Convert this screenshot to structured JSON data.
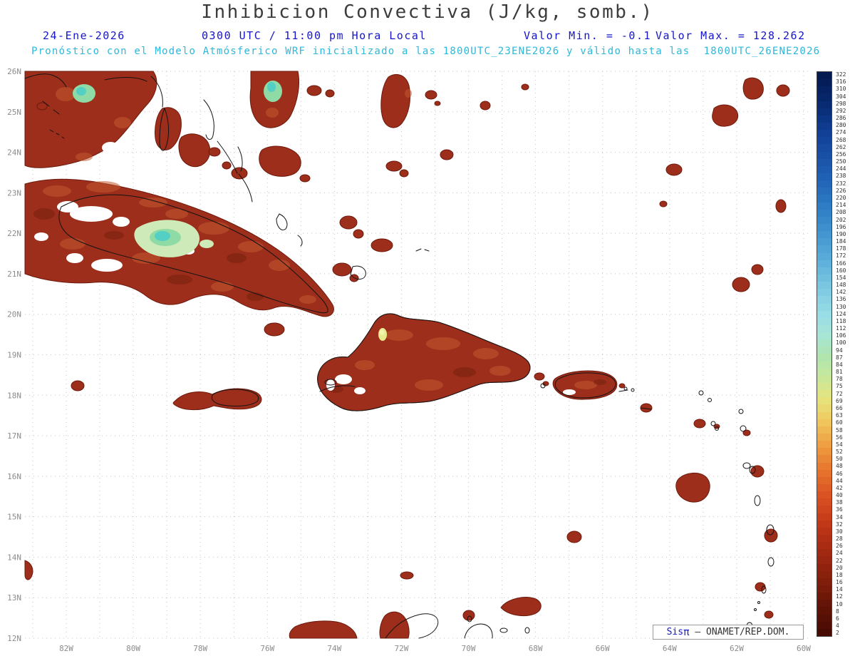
{
  "title": "Inhibicion Convectiva (J/kg, somb.)",
  "header": {
    "date": "24-Ene-2026",
    "time": "0300 UTC / 11:00 pm Hora Local",
    "valor_min": "Valor Min. = -0.1",
    "valor_max": "Valor Max. = 128.262",
    "subtitle": "Pronóstico con el Modelo Atmósferico WRF inicializado a las 1800UTC_23ENE2026 y válido hasta las  1800UTC_26ENE2026"
  },
  "map": {
    "lat_labels": [
      "26N",
      "25N",
      "24N",
      "23N",
      "22N",
      "21N",
      "20N",
      "19N",
      "18N",
      "17N",
      "16N",
      "15N",
      "14N",
      "13N",
      "12N"
    ],
    "lon_labels": [
      "82W",
      "80W",
      "78W",
      "76W",
      "74W",
      "72W",
      "70W",
      "68W",
      "66W",
      "64W",
      "62W",
      "60W"
    ]
  },
  "colorbar": {
    "values": [
      322,
      316,
      310,
      304,
      298,
      292,
      286,
      280,
      274,
      268,
      262,
      256,
      250,
      244,
      238,
      232,
      226,
      220,
      214,
      208,
      202,
      196,
      190,
      184,
      178,
      172,
      166,
      160,
      154,
      148,
      142,
      136,
      130,
      124,
      118,
      112,
      106,
      100,
      94,
      87,
      84,
      81,
      78,
      75,
      72,
      69,
      66,
      63,
      60,
      58,
      56,
      54,
      52,
      50,
      48,
      46,
      44,
      42,
      40,
      38,
      36,
      34,
      32,
      30,
      28,
      26,
      24,
      22,
      20,
      18,
      16,
      14,
      12,
      10,
      8,
      6,
      4,
      2
    ],
    "gradient_stops": [
      [
        0.0,
        "#041a50"
      ],
      [
        0.05,
        "#082a72"
      ],
      [
        0.11,
        "#12429a"
      ],
      [
        0.18,
        "#1f60b4"
      ],
      [
        0.25,
        "#3284c8"
      ],
      [
        0.32,
        "#55a8d8"
      ],
      [
        0.38,
        "#7cc8e2"
      ],
      [
        0.43,
        "#9adee6"
      ],
      [
        0.47,
        "#a8e6d4"
      ],
      [
        0.5,
        "#aee4b2"
      ],
      [
        0.54,
        "#c6e89c"
      ],
      [
        0.58,
        "#e6e47e"
      ],
      [
        0.62,
        "#f0c85e"
      ],
      [
        0.66,
        "#efa243"
      ],
      [
        0.7,
        "#e87c30"
      ],
      [
        0.75,
        "#dc5523"
      ],
      [
        0.8,
        "#c43a1a"
      ],
      [
        0.85,
        "#a52a12"
      ],
      [
        0.9,
        "#87200c"
      ],
      [
        0.95,
        "#651407"
      ],
      [
        1.0,
        "#470b04"
      ]
    ]
  },
  "attribution": {
    "sis": "Sis",
    "pi": "π",
    "rest": " – ONAMET/REP.DOM."
  },
  "colors": {
    "title_color": "#3c3c3c",
    "header_blue": "#1616c8",
    "subtitle_cyan": "#2cb8dc",
    "grid": "#c4c4c4",
    "label": "#8c8c8c",
    "blob_fill": "#9c2e1b",
    "blob_stroke": "#6e1a0c",
    "blob_light": "#c2592e",
    "blob_dark": "#731d0e",
    "green_patch": "#8edba6",
    "pale_green": "#cdeab8",
    "cyan_patch": "#54cfc4",
    "yellow_patch": "#e6eb8d",
    "coast": "#141414",
    "colorbar_border": "#444444",
    "cb_label": "#333333"
  }
}
